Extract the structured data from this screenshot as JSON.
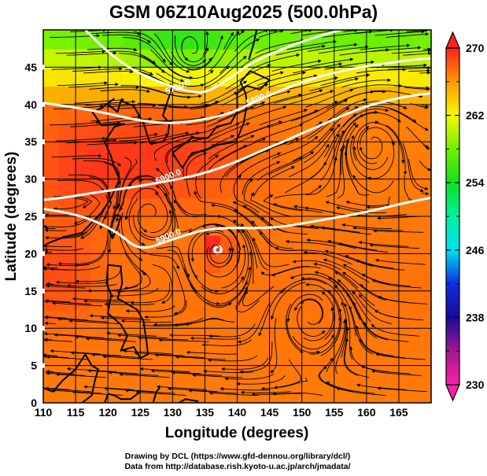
{
  "title": "GSM 06Z10Aug2025 (500.0hPa)",
  "credits": {
    "line1": "Drawing by DCL (https://www.gfd-dennou.org/library/dcl/)",
    "line2": "Data from http://database.rish.kyoto-u.ac.jp/arch/jmadata/"
  },
  "chart_data": {
    "type": "heatmap",
    "title": "GSM 06Z10Aug2025 (500.0hPa)",
    "xlabel": "Longitude (degrees)",
    "ylabel": "Latitude  (degrees)",
    "xlim": [
      110,
      170
    ],
    "ylim": [
      0,
      50
    ],
    "x_ticks": [
      110,
      115,
      120,
      125,
      130,
      135,
      140,
      145,
      150,
      155,
      160,
      165
    ],
    "y_ticks": [
      0,
      5,
      10,
      15,
      20,
      25,
      30,
      35,
      40,
      45
    ],
    "grid": true,
    "field": "temperature (K), shaded",
    "colorbar": {
      "min": 230,
      "max": 270,
      "tick_labels": [
        230,
        238,
        246,
        254,
        262,
        270
      ],
      "minor_ticks": [
        234,
        242,
        250,
        258,
        266
      ],
      "extend": "both",
      "placement": "right",
      "stops": [
        {
          "v": 230,
          "color": "#ff1fa8"
        },
        {
          "v": 234,
          "color": "#a01890"
        },
        {
          "v": 238,
          "color": "#1a0a9a"
        },
        {
          "v": 242,
          "color": "#0a30e0"
        },
        {
          "v": 246,
          "color": "#00e0f0"
        },
        {
          "v": 250,
          "color": "#00f0a0"
        },
        {
          "v": 254,
          "color": "#10e020"
        },
        {
          "v": 258,
          "color": "#70f000"
        },
        {
          "v": 262,
          "color": "#f8f800"
        },
        {
          "v": 266,
          "color": "#ff9a00"
        },
        {
          "v": 270,
          "color": "#ff2020"
        }
      ]
    },
    "height_contours": {
      "field": "geopotential height (m)",
      "interval": 100,
      "lines": [
        {
          "value": 5700.0,
          "label": "5700.0",
          "points": [
            [
              116.5,
              50
            ],
            [
              120,
              47
            ],
            [
              124,
              44.5
            ],
            [
              128,
              43
            ],
            [
              132,
              41.8
            ],
            [
              135,
              41.5
            ],
            [
              138,
              43
            ],
            [
              142,
              45.5
            ],
            [
              147,
              47.5
            ],
            [
              152,
              49
            ],
            [
              156,
              50
            ]
          ]
        },
        {
          "value": 5800.0,
          "label": "5800.0",
          "points": [
            [
              110,
              40.2
            ],
            [
              115,
              39.6
            ],
            [
              120,
              38.8
            ],
            [
              125,
              37.8
            ],
            [
              130,
              37.4
            ],
            [
              135,
              38
            ],
            [
              139,
              38.8
            ],
            [
              143,
              40.5
            ],
            [
              147,
              42
            ],
            [
              151,
              43.3
            ],
            [
              155,
              44.3
            ],
            [
              159,
              45
            ],
            [
              163,
              45.5
            ],
            [
              167,
              46
            ],
            [
              170,
              46.2
            ]
          ]
        },
        {
          "value": 5900.0,
          "label": "5900.0",
          "points": [
            [
              110,
              27.2
            ],
            [
              114,
              27.6
            ],
            [
              118,
              28.2
            ],
            [
              123,
              28.8
            ],
            [
              127,
              29.4
            ],
            [
              131,
              30
            ],
            [
              135,
              30.8
            ],
            [
              139,
              32
            ],
            [
              143,
              33.5
            ],
            [
              147,
              35
            ],
            [
              151,
              36.5
            ],
            [
              155,
              38
            ],
            [
              159,
              39.5
            ],
            [
              163,
              40.5
            ],
            [
              167,
              41.2
            ],
            [
              170,
              41.5
            ]
          ]
        },
        {
          "value": 5900.0,
          "label": "5900.0",
          "points": [
            [
              110,
              26
            ],
            [
              113,
              25.6
            ],
            [
              116,
              25
            ],
            [
              119,
              24
            ],
            [
              122,
              22.5
            ],
            [
              124,
              21
            ],
            [
              126,
              20.7
            ],
            [
              129,
              21.6
            ],
            [
              132,
              22.5
            ],
            [
              135,
              23.2
            ],
            [
              139,
              23.5
            ],
            [
              143,
              23.4
            ],
            [
              147,
              23.6
            ],
            [
              151,
              24.2
            ],
            [
              155,
              24.8
            ],
            [
              159,
              25.4
            ],
            [
              163,
              26.2
            ],
            [
              167,
              27
            ],
            [
              170,
              27.5
            ]
          ]
        }
      ],
      "label_positions": [
        {
          "label": "5700.0",
          "lon": 131,
          "lat": 42
        },
        {
          "label": "5800.0",
          "lon": 143.5,
          "lat": 40.5
        },
        {
          "label": "5900.0",
          "lon": 129.5,
          "lat": 30
        },
        {
          "label": "5900.0",
          "lon": 129.5,
          "lat": 22
        }
      ]
    },
    "streamline_features": [
      {
        "type": "cyclonic-vortex",
        "lon": 133,
        "lat": 47
      },
      {
        "type": "anticyclonic-vortex",
        "lon": 161,
        "lat": 35
      },
      {
        "type": "cyclonic-vortex",
        "lon": 126.5,
        "lat": 25.5
      },
      {
        "type": "vortex",
        "lon": 151.5,
        "lat": 12
      },
      {
        "type": "typhoon-center",
        "lon": 137,
        "lat": 20.5
      }
    ],
    "temperature_regions": [
      {
        "description": "cold pocket (green)",
        "lon": 132,
        "lat": 47,
        "value": 257
      },
      {
        "description": "yellow band",
        "lon": 118,
        "lat": 44,
        "value": 262
      },
      {
        "description": "warm core (red)",
        "lon": 128,
        "lat": 34,
        "value": 269
      },
      {
        "description": "tropics (orange-red)",
        "lon": 150,
        "lat": 10,
        "value": 267
      }
    ]
  }
}
